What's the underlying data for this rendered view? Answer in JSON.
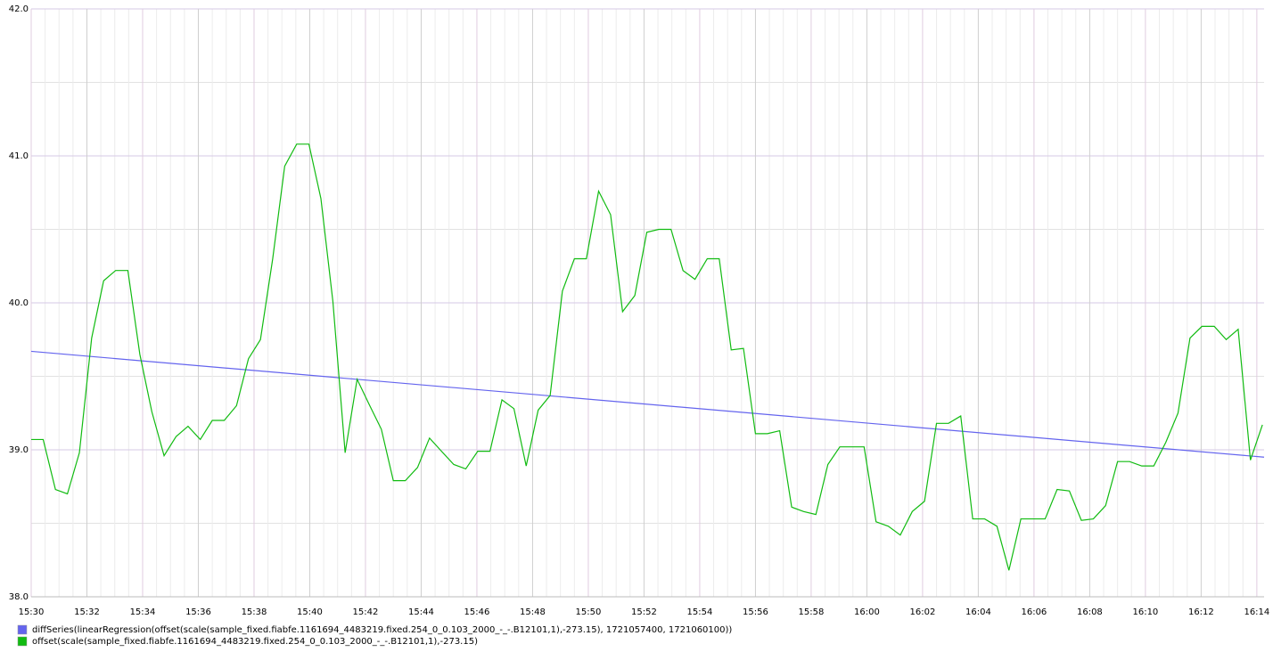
{
  "chart_data": {
    "type": "line",
    "xlim": [
      0,
      44.26
    ],
    "ylim": [
      38,
      42
    ],
    "xticks": [
      {
        "value": 0,
        "label": "15:30"
      },
      {
        "value": 2,
        "label": "15:32"
      },
      {
        "value": 4,
        "label": "15:34"
      },
      {
        "value": 6,
        "label": "15:36"
      },
      {
        "value": 8,
        "label": "15:38"
      },
      {
        "value": 10,
        "label": "15:40"
      },
      {
        "value": 12,
        "label": "15:42"
      },
      {
        "value": 14,
        "label": "15:44"
      },
      {
        "value": 16,
        "label": "15:46"
      },
      {
        "value": 18,
        "label": "15:48"
      },
      {
        "value": 20,
        "label": "15:50"
      },
      {
        "value": 22,
        "label": "15:52"
      },
      {
        "value": 24,
        "label": "15:54"
      },
      {
        "value": 26,
        "label": "15:56"
      },
      {
        "value": 28,
        "label": "15:58"
      },
      {
        "value": 30,
        "label": "16:00"
      },
      {
        "value": 32,
        "label": "16:02"
      },
      {
        "value": 34,
        "label": "16:04"
      },
      {
        "value": 36,
        "label": "16:06"
      },
      {
        "value": 38,
        "label": "16:08"
      },
      {
        "value": 40,
        "label": "16:10"
      },
      {
        "value": 42,
        "label": "16:12"
      },
      {
        "value": 44,
        "label": "16:14"
      }
    ],
    "yticks": [
      {
        "value": 38,
        "label": "38.0"
      },
      {
        "value": 39,
        "label": "39.0"
      },
      {
        "value": 40,
        "label": "40.0"
      },
      {
        "value": 41,
        "label": "41.0"
      },
      {
        "value": 42,
        "label": "42.0"
      }
    ],
    "grid": true,
    "series": [
      {
        "name": "diffSeries(linearRegression(offset(scale(sample_fixed.fiabfe.1161694_4483219.fixed.254_0_0.103_2000_-_-.B12101,1),-273.15), 1721057400, 1721060100))",
        "color": "#6464ee",
        "x": [
          0,
          44.26
        ],
        "values": [
          39.67,
          38.95
        ]
      },
      {
        "name": "offset(scale(sample_fixed.fiabfe.1161694_4483219.fixed.254_0_0.103_2000_-_-.B12101,1),-273.15)",
        "color": "#11bb11",
        "x": [
          0,
          0.43,
          0.87,
          1.3,
          1.73,
          2.17,
          2.6,
          3.03,
          3.47,
          3.9,
          4.33,
          4.77,
          5.2,
          5.63,
          6.07,
          6.5,
          6.93,
          7.37,
          7.8,
          8.23,
          8.67,
          9.1,
          9.53,
          9.97,
          10.4,
          10.83,
          11.27,
          11.7,
          12.13,
          12.57,
          13,
          13.43,
          13.87,
          14.3,
          14.73,
          15.17,
          15.6,
          16.03,
          16.47,
          16.9,
          17.33,
          17.77,
          18.2,
          18.63,
          19.07,
          19.5,
          19.93,
          20.37,
          20.8,
          21.23,
          21.67,
          22.1,
          22.53,
          22.97,
          23.4,
          23.83,
          24.27,
          24.7,
          25.13,
          25.57,
          26,
          26.43,
          26.87,
          27.3,
          27.73,
          28.17,
          28.6,
          29.03,
          29.47,
          29.9,
          30.33,
          30.77,
          31.2,
          31.63,
          32.07,
          32.5,
          32.93,
          33.37,
          33.8,
          34.23,
          34.67,
          35.1,
          35.53,
          35.97,
          36.4,
          36.83,
          37.27,
          37.7,
          38.13,
          38.57,
          39,
          39.43,
          39.87,
          40.3,
          40.73,
          41.17,
          41.6,
          42.03,
          42.47,
          42.9,
          43.33,
          43.77,
          44.2
        ],
        "values": [
          39.07,
          39.07,
          38.73,
          38.7,
          38.98,
          39.76,
          40.15,
          40.22,
          40.22,
          39.65,
          39.26,
          38.96,
          39.09,
          39.16,
          39.07,
          39.2,
          39.2,
          39.3,
          39.62,
          39.75,
          40.3,
          40.93,
          41.08,
          41.08,
          40.71,
          40.01,
          38.98,
          39.48,
          39.31,
          39.14,
          38.79,
          38.79,
          38.88,
          39.08,
          38.99,
          38.9,
          38.87,
          38.99,
          38.99,
          39.34,
          39.28,
          38.89,
          39.27,
          39.37,
          40.08,
          40.3,
          40.3,
          40.76,
          40.6,
          39.94,
          40.05,
          40.48,
          40.5,
          40.5,
          40.22,
          40.16,
          40.3,
          40.3,
          39.68,
          39.69,
          39.11,
          39.11,
          39.13,
          38.61,
          38.58,
          38.56,
          38.9,
          39.02,
          39.02,
          39.02,
          38.51,
          38.48,
          38.42,
          38.58,
          38.65,
          39.18,
          39.18,
          39.23,
          38.53,
          38.53,
          38.48,
          38.18,
          38.53,
          38.53,
          38.53,
          38.73,
          38.72,
          38.52,
          38.53,
          38.62,
          38.92,
          38.92,
          38.89,
          38.89,
          39.05,
          39.25,
          39.76,
          39.84,
          39.84,
          39.75,
          39.82,
          38.93,
          39.17
        ]
      }
    ]
  }
}
